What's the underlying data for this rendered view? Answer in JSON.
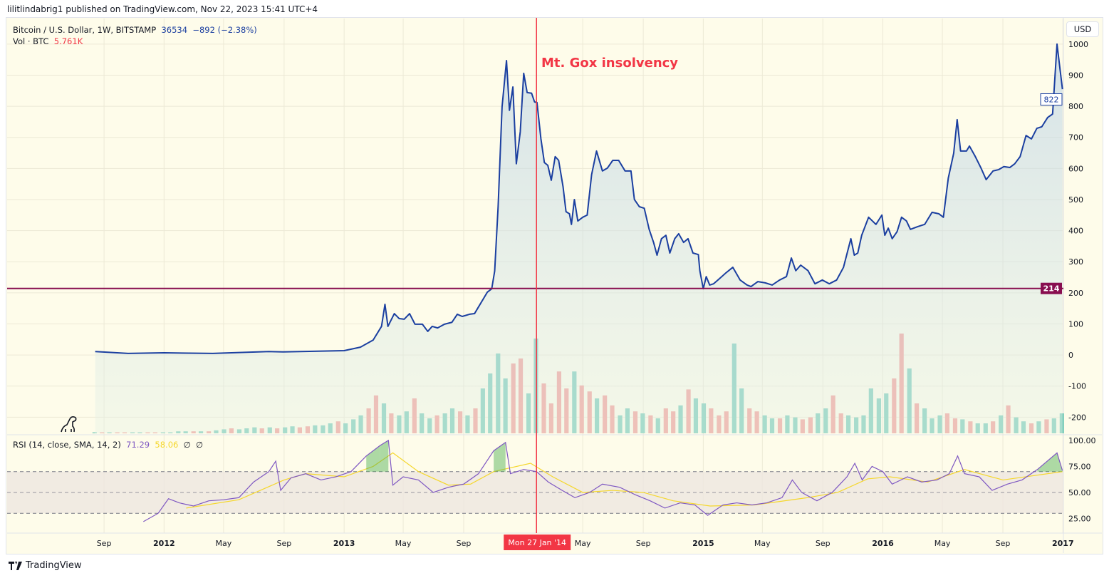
{
  "header": {
    "published": "lilitlindabrig1 published on TradingView.com, Nov 22, 2023 15:41 UTC+4"
  },
  "legend": {
    "symbol": "Bitcoin / U.S. Dollar, 1W, BITSTAMP",
    "last": "36534",
    "change": "−892 (−2.38%)",
    "vol_label": "Vol · BTC",
    "vol_value": "5.761K"
  },
  "rsi_legend": {
    "label": "RSI (14, close, SMA, 14, 2)",
    "rsi": "71.29",
    "sma": "58.06",
    "extra1": "∅",
    "extra2": "∅"
  },
  "currency_button": "USD",
  "annotation": "Mt. Gox insolvency",
  "crosshair_date_label": "Mon 27 Jan '14",
  "footer": {
    "brand": "TradingView"
  },
  "colors": {
    "price_line": "#1b3fa0",
    "hline": "#880e4f",
    "vline": "#f23645",
    "vol_up": "#7fcdbb",
    "vol_down": "#f4a09a",
    "rsi": "#7e57c2",
    "sma": "#f5d72c",
    "background": "#fefcea"
  },
  "chart_data": [
    {
      "type": "area",
      "title": "Bitcoin / U.S. Dollar, 1W, BITSTAMP",
      "xlim": [
        "2011-02-16",
        "2017-01-02"
      ],
      "ylim": [
        -252,
        1073
      ],
      "yticks": [
        1000,
        900,
        800,
        700,
        600,
        500,
        400,
        300,
        200,
        100,
        0,
        -100,
        -200
      ],
      "last_price_label": "822",
      "hline": {
        "value": 214,
        "label": "214"
      },
      "vline_date": "2014-01-27",
      "x": [
        "2011-08-14",
        "2011-10-20",
        "2012-01-01",
        "2012-04-09",
        "2012-08-01",
        "2012-08-30",
        "2013-01-01",
        "2013-02-03",
        "2013-03-01",
        "2013-03-18",
        "2013-03-25",
        "2013-03-31",
        "2013-04-13",
        "2013-04-23",
        "2013-05-03",
        "2013-05-14",
        "2013-05-25",
        "2013-06-09",
        "2013-06-20",
        "2013-06-29",
        "2013-07-10",
        "2013-07-24",
        "2013-08-08",
        "2013-08-19",
        "2013-08-29",
        "2013-09-13",
        "2013-09-23",
        "2013-10-19",
        "2013-10-28",
        "2013-11-03",
        "2013-11-10",
        "2013-11-18",
        "2013-11-27",
        "2013-12-03",
        "2013-12-10",
        "2013-12-17",
        "2013-12-25",
        "2014-01-01",
        "2014-01-08",
        "2014-01-17",
        "2014-01-23",
        "2014-01-28",
        "2014-02-05",
        "2014-02-12",
        "2014-02-19",
        "2014-02-26",
        "2014-03-06",
        "2014-03-13",
        "2014-03-22",
        "2014-03-28",
        "2014-04-04",
        "2014-04-08",
        "2014-04-14",
        "2014-04-21",
        "2014-05-01",
        "2014-05-10",
        "2014-05-19",
        "2014-05-29",
        "2014-06-10",
        "2014-06-20",
        "2014-07-01",
        "2014-07-13",
        "2014-07-26",
        "2014-08-07",
        "2014-08-14",
        "2014-08-24",
        "2014-09-03",
        "2014-09-13",
        "2014-09-22",
        "2014-09-29",
        "2014-10-08",
        "2014-10-17",
        "2014-10-25",
        "2014-11-04",
        "2014-11-12",
        "2014-11-22",
        "2014-12-01",
        "2014-12-11",
        "2014-12-22",
        "2014-12-25",
        "2015-01-01",
        "2015-01-07",
        "2015-01-14",
        "2015-01-22",
        "2015-02-01",
        "2015-02-16",
        "2015-03-02",
        "2015-03-17",
        "2015-03-31",
        "2015-04-08",
        "2015-04-22",
        "2015-05-07",
        "2015-05-21",
        "2015-06-05",
        "2015-06-19",
        "2015-06-29",
        "2015-07-08",
        "2015-07-18",
        "2015-08-02",
        "2015-08-16",
        "2015-08-31",
        "2015-09-14",
        "2015-09-29",
        "2015-10-13",
        "2015-10-28",
        "2015-11-04",
        "2015-11-11",
        "2015-11-19",
        "2015-12-03",
        "2015-12-18",
        "2015-12-30",
        "2016-01-05",
        "2016-01-12",
        "2016-01-20",
        "2016-01-30",
        "2016-02-08",
        "2016-02-18",
        "2016-02-26",
        "2016-03-12",
        "2016-03-26",
        "2016-04-10",
        "2016-04-24",
        "2016-05-03",
        "2016-05-13",
        "2016-05-24",
        "2016-05-31",
        "2016-06-07",
        "2016-06-19",
        "2016-06-25",
        "2016-07-07",
        "2016-07-18",
        "2016-07-29",
        "2016-08-12",
        "2016-08-23",
        "2016-09-03",
        "2016-09-15",
        "2016-09-25",
        "2016-10-06",
        "2016-10-18",
        "2016-10-29",
        "2016-11-09",
        "2016-11-19",
        "2016-12-01",
        "2016-12-11",
        "2016-12-20",
        "2016-12-31"
      ],
      "y": [
        11,
        5,
        7,
        5,
        11,
        10,
        14,
        25,
        48,
        92,
        163,
        92,
        133,
        117,
        115,
        133,
        99,
        99,
        76,
        92,
        87,
        99,
        105,
        131,
        124,
        131,
        133,
        202,
        213,
        270,
        477,
        798,
        947,
        787,
        862,
        615,
        718,
        906,
        844,
        842,
        814,
        812,
        695,
        619,
        610,
        562,
        638,
        626,
        541,
        461,
        454,
        420,
        500,
        431,
        443,
        450,
        580,
        656,
        592,
        601,
        626,
        626,
        592,
        592,
        500,
        477,
        472,
        404,
        362,
        321,
        374,
        385,
        328,
        374,
        390,
        362,
        374,
        328,
        323,
        271,
        213,
        252,
        225,
        229,
        243,
        264,
        282,
        241,
        225,
        220,
        236,
        232,
        225,
        241,
        252,
        312,
        271,
        289,
        271,
        229,
        241,
        229,
        241,
        282,
        374,
        321,
        328,
        385,
        443,
        420,
        450,
        385,
        408,
        374,
        397,
        443,
        431,
        404,
        413,
        420,
        459,
        454,
        443,
        569,
        649,
        757,
        656,
        656,
        672,
        638,
        603,
        564,
        592,
        596,
        606,
        603,
        615,
        638,
        706,
        695,
        729,
        734,
        764,
        775,
        1000,
        855
      ]
    },
    {
      "type": "bar",
      "title": "Vol · BTC",
      "values": [
        1,
        1,
        1,
        1,
        1,
        1,
        1,
        1,
        1,
        1,
        1,
        2,
        2,
        2,
        2,
        2,
        3,
        4,
        5,
        4,
        5,
        6,
        5,
        6,
        5,
        6,
        7,
        6,
        7,
        8,
        8,
        10,
        12,
        10,
        14,
        18,
        25,
        38,
        30,
        20,
        18,
        22,
        35,
        20,
        15,
        18,
        20,
        25,
        22,
        18,
        25,
        45,
        60,
        80,
        55,
        70,
        75,
        40,
        95,
        50,
        30,
        62,
        45,
        62,
        48,
        42,
        35,
        38,
        28,
        18,
        25,
        22,
        20,
        18,
        15,
        25,
        22,
        28,
        44,
        35,
        30,
        25,
        18,
        22,
        90,
        45,
        25,
        22,
        18,
        15,
        15,
        18,
        16,
        14,
        16,
        20,
        25,
        38,
        20,
        18,
        16,
        18,
        45,
        35,
        40,
        55,
        100,
        65,
        30,
        25,
        15,
        18,
        20,
        15,
        14,
        12,
        10,
        10,
        12,
        18,
        28,
        16,
        12,
        10,
        12,
        14,
        15,
        20
      ],
      "directions": "ududduudduuuududuuduuududuudduuuduuudduduuduuduududuuuudduudddduddudduudududduduuddduudduuduudduudduuuuuudduduuudduduududuudud"
    },
    {
      "type": "line",
      "title": "RSI (14, close, SMA, 14, 2)",
      "ylim": [
        11,
        104
      ],
      "yticks": [
        100,
        75,
        50,
        25
      ],
      "bands": [
        30,
        50,
        70
      ],
      "series": [
        {
          "x": [
            "2011-11-20",
            "2011-12-20",
            "2012-01-10",
            "2012-02-01",
            "2012-03-01",
            "2012-04-01",
            "2012-05-01",
            "2012-06-01",
            "2012-07-01",
            "2012-08-01",
            "2012-08-15",
            "2012-08-25",
            "2012-09-15",
            "2012-10-15",
            "2012-11-15",
            "2012-12-15",
            "2013-01-15",
            "2013-02-15",
            "2013-03-15",
            "2013-04-01",
            "2013-04-10",
            "2013-05-01",
            "2013-06-01",
            "2013-07-01",
            "2013-08-01",
            "2013-09-01",
            "2013-10-01",
            "2013-11-01",
            "2013-11-25",
            "2013-12-05",
            "2014-01-01",
            "2014-01-27",
            "2014-02-20",
            "2014-03-20",
            "2014-04-15",
            "2014-05-15",
            "2014-06-10",
            "2014-07-15",
            "2014-08-15",
            "2014-09-15",
            "2014-10-15",
            "2014-11-15",
            "2014-12-15",
            "2015-01-10",
            "2015-02-10",
            "2015-03-10",
            "2015-04-10",
            "2015-05-10",
            "2015-06-10",
            "2015-07-01",
            "2015-07-20",
            "2015-08-20",
            "2015-09-20",
            "2015-10-20",
            "2015-11-05",
            "2015-11-20",
            "2015-12-10",
            "2016-01-01",
            "2016-01-20",
            "2016-02-20",
            "2016-03-20",
            "2016-04-20",
            "2016-05-15",
            "2016-06-01",
            "2016-06-15",
            "2016-07-15",
            "2016-08-10",
            "2016-09-10",
            "2016-10-10",
            "2016-11-10",
            "2016-12-20",
            "2016-12-31"
          ],
          "y": [
            22,
            30,
            44,
            40,
            37,
            42,
            43,
            45,
            60,
            70,
            80,
            52,
            64,
            68,
            62,
            65,
            70,
            85,
            95,
            100,
            57,
            65,
            62,
            50,
            55,
            58,
            68,
            90,
            98,
            68,
            72,
            70,
            60,
            52,
            45,
            50,
            58,
            55,
            48,
            42,
            35,
            40,
            38,
            28,
            38,
            40,
            38,
            40,
            45,
            62,
            50,
            42,
            50,
            65,
            78,
            62,
            75,
            70,
            58,
            65,
            60,
            62,
            68,
            85,
            68,
            65,
            52,
            58,
            62,
            72,
            88,
            71
          ]
        },
        {
          "x": [
            "2012-02-15",
            "2012-06-01",
            "2012-09-01",
            "2012-10-15",
            "2013-01-01",
            "2013-03-01",
            "2013-04-10",
            "2013-06-01",
            "2013-08-01",
            "2013-09-15",
            "2013-11-01",
            "2014-01-15",
            "2014-03-01",
            "2014-05-01",
            "2014-07-01",
            "2014-09-01",
            "2014-11-01",
            "2015-01-15",
            "2015-04-15",
            "2015-08-01",
            "2015-10-01",
            "2015-12-01",
            "2016-01-15",
            "2016-04-01",
            "2016-06-15",
            "2016-09-01",
            "2016-12-31"
          ],
          "y": [
            35,
            43,
            62,
            68,
            65,
            75,
            88,
            70,
            57,
            58,
            70,
            78,
            65,
            50,
            52,
            50,
            42,
            37,
            38,
            45,
            50,
            63,
            65,
            60,
            72,
            62,
            70
          ]
        }
      ]
    },
    {
      "type": "time-axis",
      "ticks": [
        {
          "date": "2011-09-01",
          "label": "Sep"
        },
        {
          "date": "2012-01-01",
          "label": "2012",
          "bold": true
        },
        {
          "date": "2012-05-01",
          "label": "May"
        },
        {
          "date": "2012-09-01",
          "label": "Sep"
        },
        {
          "date": "2013-01-01",
          "label": "2013",
          "bold": true
        },
        {
          "date": "2013-05-01",
          "label": "May"
        },
        {
          "date": "2013-09-01",
          "label": "Sep"
        },
        {
          "date": "2014-05-01",
          "label": "May"
        },
        {
          "date": "2014-09-01",
          "label": "Sep"
        },
        {
          "date": "2015-01-01",
          "label": "2015",
          "bold": true
        },
        {
          "date": "2015-05-01",
          "label": "May"
        },
        {
          "date": "2015-09-01",
          "label": "Sep"
        },
        {
          "date": "2016-01-01",
          "label": "2016",
          "bold": true
        },
        {
          "date": "2016-05-01",
          "label": "May"
        },
        {
          "date": "2016-09-01",
          "label": "Sep"
        },
        {
          "date": "2017-01-01",
          "label": "2017",
          "bold": true
        }
      ]
    }
  ]
}
